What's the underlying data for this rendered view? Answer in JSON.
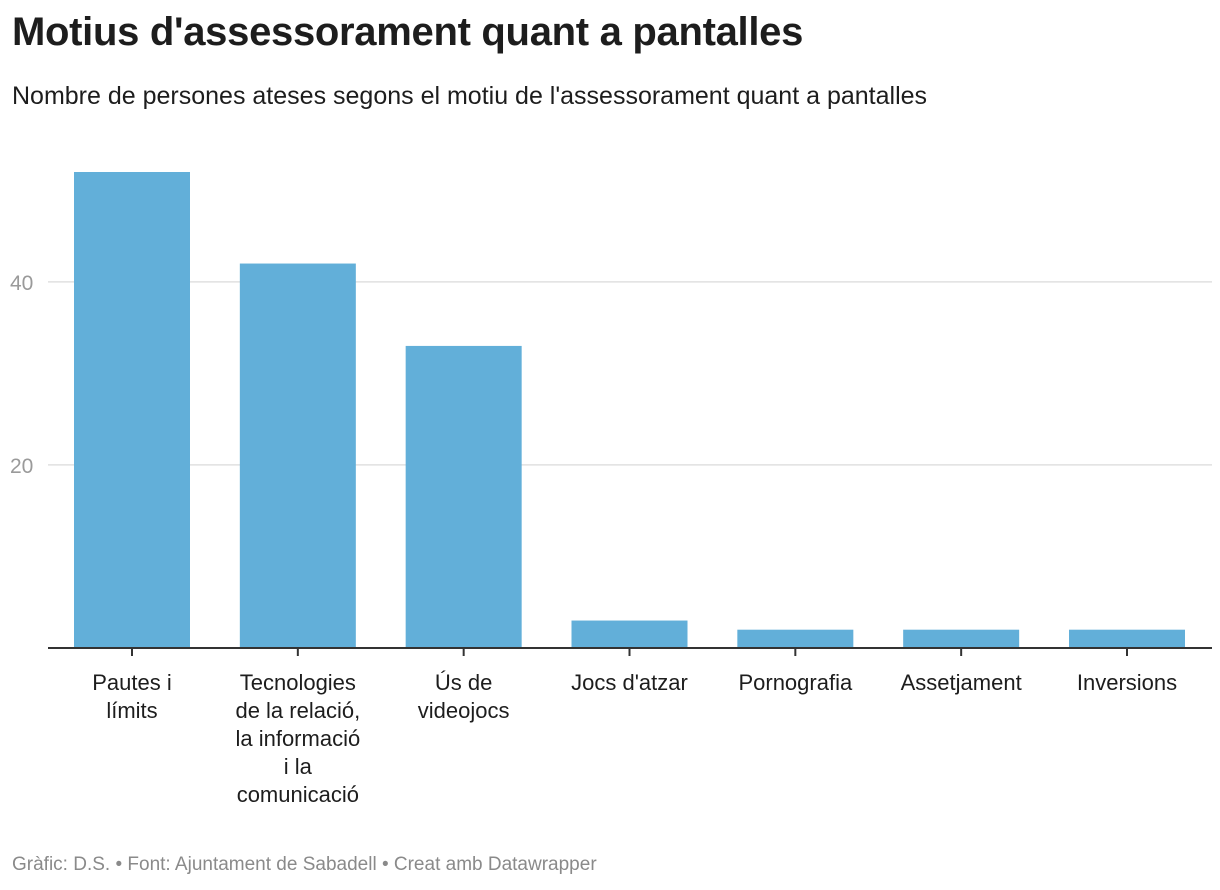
{
  "chart_data": {
    "type": "bar",
    "title": "Motius d'assessorament quant a pantalles",
    "subtitle": "Nombre de persones ateses segons el motiu de l'assessorament quant a pantalles",
    "categories": [
      [
        "Pautes i",
        "límits"
      ],
      [
        "Tecnologies",
        "de la relació,",
        "la informació",
        "i la",
        "comunicació"
      ],
      [
        "Ús de",
        "videojocs"
      ],
      [
        "Jocs d'atzar"
      ],
      [
        "Pornografia"
      ],
      [
        "Assetjament"
      ],
      [
        "Inversions"
      ]
    ],
    "values": [
      52,
      42,
      33,
      3,
      2,
      2,
      2
    ],
    "ylim": [
      0,
      52
    ],
    "yticks": [
      20,
      40
    ],
    "xlabel": "",
    "ylabel": "",
    "grid": true,
    "bar_color": "#62afd9",
    "grid_color": "#e0e0e0",
    "axis_color": "#333333"
  },
  "footer": "Gràfic: D.S. • Font: Ajuntament de Sabadell • Creat amb Datawrapper"
}
